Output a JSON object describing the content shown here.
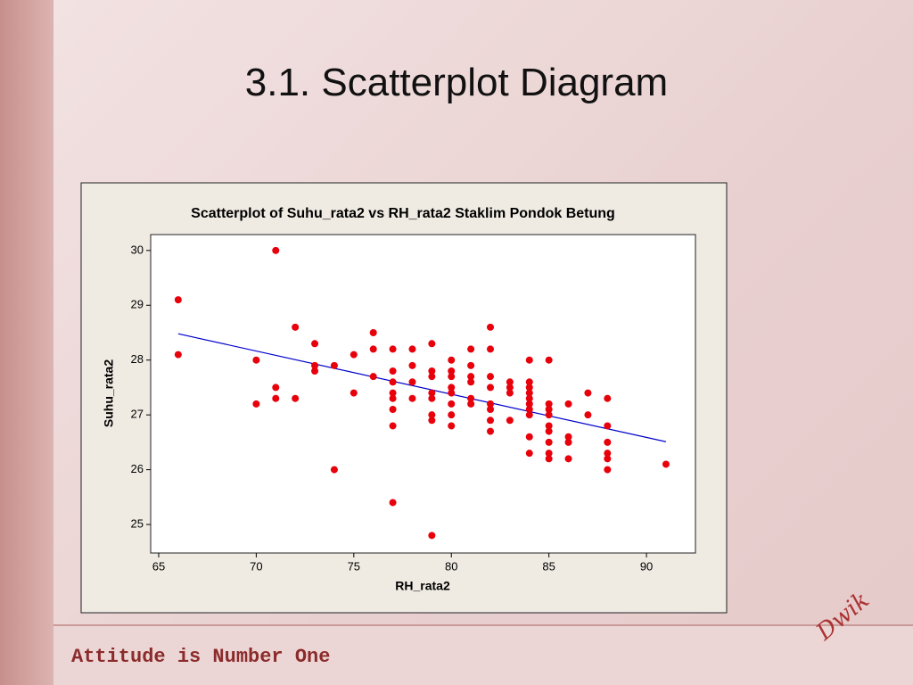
{
  "slide": {
    "title": "3.1. Scatterplot Diagram",
    "footer": "Attitude is Number One",
    "corner_text": "Dwik"
  },
  "chart_data": {
    "type": "scatter",
    "title": "Scatterplot of Suhu_rata2 vs RH_rata2 Staklim Pondok Betung",
    "x_label": "RH_rata2",
    "y_label": "Suhu_rata2",
    "color": "#e8000b",
    "x": [
      66,
      66,
      70,
      70,
      71,
      71,
      71,
      72,
      72,
      73,
      73,
      73,
      74,
      74,
      75,
      75,
      76,
      76,
      76,
      77,
      77,
      77,
      77,
      77,
      77,
      77,
      77,
      78,
      78,
      78,
      78,
      79,
      79,
      79,
      79,
      79,
      79,
      79,
      79,
      80,
      80,
      80,
      80,
      80,
      80,
      80,
      80,
      81,
      81,
      81,
      81,
      81,
      81,
      82,
      82,
      82,
      82,
      82,
      82,
      82,
      82,
      83,
      83,
      83,
      83,
      84,
      84,
      84,
      84,
      84,
      84,
      84,
      84,
      84,
      84,
      85,
      85,
      85,
      85,
      85,
      85,
      85,
      85,
      85,
      86,
      86,
      86,
      86,
      87,
      87,
      88,
      88,
      88,
      88,
      88,
      88,
      91
    ],
    "y": [
      29.1,
      28.1,
      28.0,
      27.2,
      30.0,
      27.5,
      27.3,
      28.6,
      27.3,
      28.3,
      27.9,
      27.8,
      27.9,
      26.0,
      28.1,
      27.4,
      28.5,
      28.2,
      27.7,
      28.2,
      27.8,
      27.6,
      27.4,
      27.3,
      27.1,
      26.8,
      25.4,
      28.2,
      27.9,
      27.6,
      27.3,
      28.3,
      27.8,
      27.7,
      27.4,
      27.3,
      27.0,
      26.9,
      24.8,
      28.0,
      27.8,
      27.7,
      27.5,
      27.4,
      27.2,
      27.0,
      26.8,
      28.2,
      27.9,
      27.7,
      27.6,
      27.3,
      27.2,
      28.6,
      28.2,
      27.7,
      27.5,
      27.2,
      27.1,
      26.9,
      26.7,
      27.6,
      27.5,
      27.4,
      26.9,
      28.0,
      27.6,
      27.5,
      27.4,
      27.3,
      27.2,
      27.1,
      27.0,
      26.6,
      26.3,
      28.0,
      27.2,
      27.1,
      27.0,
      26.8,
      26.7,
      26.5,
      26.3,
      26.2,
      27.2,
      26.6,
      26.5,
      26.2,
      27.4,
      27.0,
      27.3,
      26.8,
      26.5,
      26.3,
      26.2,
      26.0,
      26.1
    ],
    "fit_line": {
      "x": [
        66,
        91
      ],
      "y": [
        28.48,
        26.51
      ],
      "color": "#0000cc"
    },
    "xlim": [
      64.59,
      92.51
    ],
    "ylim": [
      24.48,
      30.29
    ],
    "xticks": [
      65,
      70,
      75,
      80,
      85,
      90
    ],
    "yticks": [
      25,
      26,
      27,
      28,
      29,
      30
    ]
  }
}
